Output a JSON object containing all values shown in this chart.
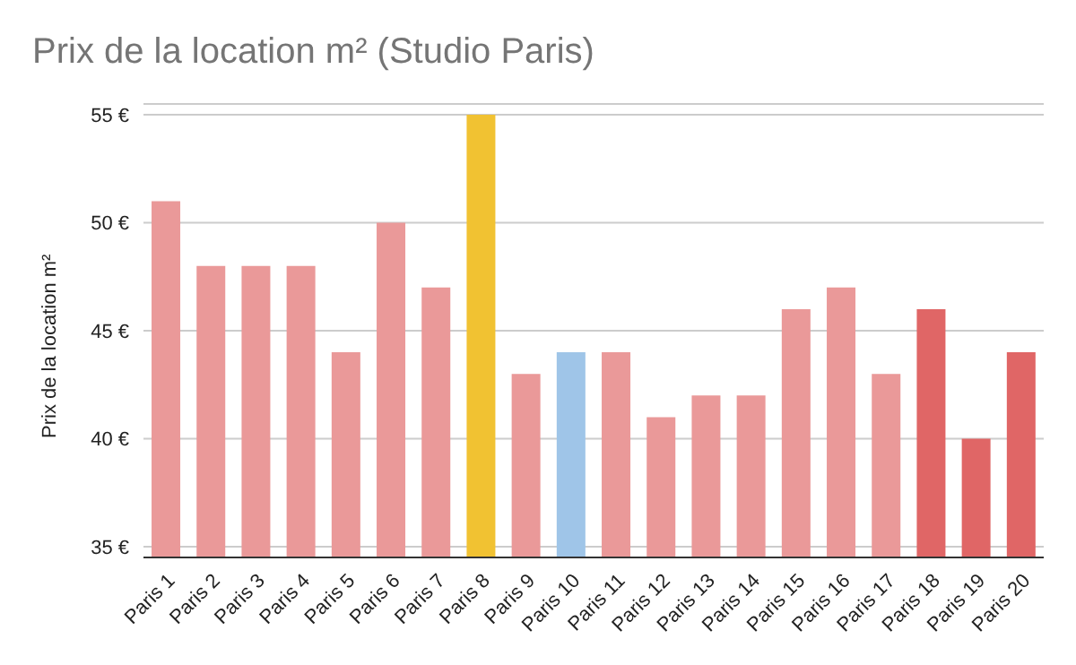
{
  "chart_data": {
    "type": "bar",
    "title": "Prix de la location m² (Studio Paris)",
    "ylabel": "Prix de la location m²",
    "categories": [
      "Paris 1",
      "Paris 2",
      "Paris 3",
      "Paris 4",
      "Paris 5",
      "Paris 6",
      "Paris 7",
      "Paris 8",
      "Paris 9",
      "Paris 10",
      "Paris 11",
      "Paris 12",
      "Paris 13",
      "Paris 14",
      "Paris 15",
      "Paris 16",
      "Paris 17",
      "Paris 18",
      "Paris 19",
      "Paris 20"
    ],
    "values": [
      51,
      48,
      48,
      48,
      44,
      50,
      47,
      55,
      43,
      44,
      44,
      41,
      42,
      42,
      46,
      47,
      43,
      46,
      40,
      44
    ],
    "colors": [
      "#ea9999",
      "#ea9999",
      "#ea9999",
      "#ea9999",
      "#ea9999",
      "#ea9999",
      "#ea9999",
      "#f1c232",
      "#ea9999",
      "#9fc5e8",
      "#ea9999",
      "#ea9999",
      "#ea9999",
      "#ea9999",
      "#ea9999",
      "#ea9999",
      "#ea9999",
      "#e06666",
      "#e06666",
      "#e06666"
    ],
    "ylim": [
      34.5,
      55.5
    ],
    "yticks": [
      {
        "value": 35,
        "label": "35 €"
      },
      {
        "value": 40,
        "label": "40 €"
      },
      {
        "value": 45,
        "label": "45 €"
      },
      {
        "value": 50,
        "label": "50 €"
      },
      {
        "value": 55,
        "label": "55 €"
      }
    ],
    "grid": "y"
  }
}
